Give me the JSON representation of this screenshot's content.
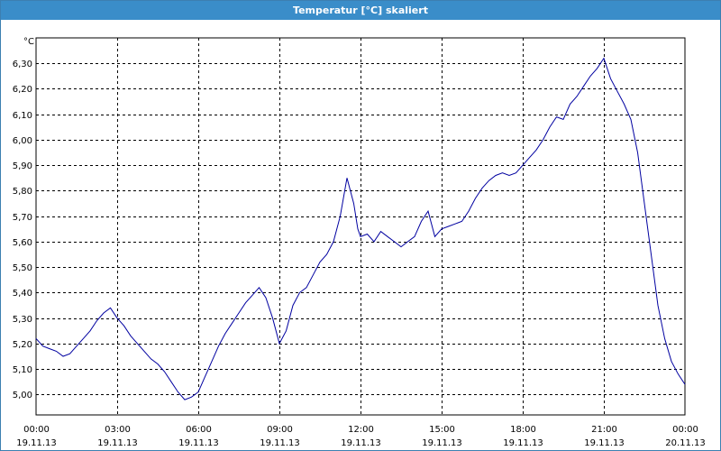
{
  "window": {
    "title": "Temperatur [°C] skaliert"
  },
  "chart_data": {
    "type": "line",
    "title": "Temperatur [°C] skaliert",
    "ylabel": "°C",
    "xlabel": "",
    "ylim": [
      4.92,
      6.4
    ],
    "xlim": [
      0,
      24
    ],
    "grid": true,
    "y_ticks": [
      "5,00",
      "5,10",
      "5,20",
      "5,30",
      "5,40",
      "5,50",
      "5,60",
      "5,70",
      "5,80",
      "5,90",
      "6,00",
      "6,10",
      "6,20",
      "6,30"
    ],
    "y_tick_values": [
      5.0,
      5.1,
      5.2,
      5.3,
      5.4,
      5.5,
      5.6,
      5.7,
      5.8,
      5.9,
      6.0,
      6.1,
      6.2,
      6.3
    ],
    "x_ticks": [
      {
        "time": "00:00",
        "date": "19.11.13",
        "hour": 0
      },
      {
        "time": "03:00",
        "date": "19.11.13",
        "hour": 3
      },
      {
        "time": "06:00",
        "date": "19.11.13",
        "hour": 6
      },
      {
        "time": "09:00",
        "date": "19.11.13",
        "hour": 9
      },
      {
        "time": "12:00",
        "date": "19.11.13",
        "hour": 12
      },
      {
        "time": "15:00",
        "date": "19.11.13",
        "hour": 15
      },
      {
        "time": "18:00",
        "date": "19.11.13",
        "hour": 18
      },
      {
        "time": "21:00",
        "date": "19.11.13",
        "hour": 21
      },
      {
        "time": "00:00",
        "date": "20.11.13",
        "hour": 24
      }
    ],
    "series": [
      {
        "color": "#0000a0",
        "x": [
          0,
          0.25,
          0.5,
          0.75,
          1.0,
          1.25,
          1.5,
          1.75,
          2.0,
          2.25,
          2.5,
          2.75,
          3.0,
          3.25,
          3.5,
          3.75,
          4.0,
          4.25,
          4.5,
          4.75,
          5.0,
          5.25,
          5.5,
          5.75,
          6.0,
          6.25,
          6.5,
          6.75,
          7.0,
          7.25,
          7.5,
          7.75,
          8.0,
          8.25,
          8.5,
          8.75,
          9.0,
          9.25,
          9.5,
          9.75,
          10.0,
          10.25,
          10.5,
          10.75,
          11.0,
          11.25,
          11.5,
          11.75,
          11.9,
          12.0,
          12.25,
          12.5,
          12.75,
          13.0,
          13.25,
          13.5,
          13.75,
          14.0,
          14.25,
          14.5,
          14.75,
          15.0,
          15.25,
          15.5,
          15.75,
          16.0,
          16.25,
          16.5,
          16.75,
          17.0,
          17.25,
          17.5,
          17.75,
          18.0,
          18.25,
          18.5,
          18.75,
          19.0,
          19.25,
          19.5,
          19.75,
          20.0,
          20.25,
          20.5,
          20.75,
          21.0,
          21.25,
          21.5,
          21.75,
          22.0,
          22.25,
          22.5,
          22.75,
          23.0,
          23.25,
          23.5,
          23.75,
          24.0
        ],
        "y": [
          5.22,
          5.19,
          5.18,
          5.17,
          5.15,
          5.16,
          5.19,
          5.22,
          5.25,
          5.29,
          5.32,
          5.34,
          5.3,
          5.27,
          5.23,
          5.2,
          5.17,
          5.14,
          5.12,
          5.09,
          5.05,
          5.01,
          4.98,
          4.99,
          5.01,
          5.07,
          5.13,
          5.19,
          5.24,
          5.28,
          5.32,
          5.36,
          5.39,
          5.42,
          5.38,
          5.3,
          5.2,
          5.25,
          5.35,
          5.4,
          5.42,
          5.47,
          5.52,
          5.55,
          5.6,
          5.7,
          5.85,
          5.75,
          5.65,
          5.62,
          5.63,
          5.6,
          5.64,
          5.62,
          5.6,
          5.58,
          5.6,
          5.62,
          5.68,
          5.72,
          5.62,
          5.65,
          5.66,
          5.67,
          5.68,
          5.72,
          5.77,
          5.81,
          5.84,
          5.86,
          5.87,
          5.86,
          5.87,
          5.9,
          5.93,
          5.96,
          6.0,
          6.05,
          6.09,
          6.08,
          6.14,
          6.17,
          6.21,
          6.25,
          6.28,
          6.32,
          6.24,
          6.19,
          6.14,
          6.08,
          5.95,
          5.75,
          5.55,
          5.35,
          5.22,
          5.13,
          5.08,
          5.04
        ]
      }
    ]
  }
}
